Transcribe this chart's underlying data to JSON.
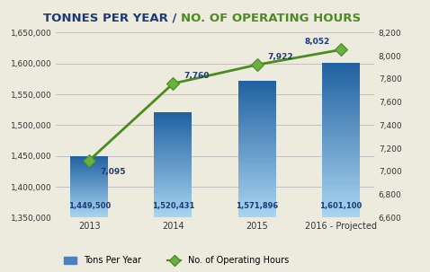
{
  "title_part1": "TONNES PER YEAR / ",
  "title_part2": "NO. OF OPERATING HOURS",
  "categories": [
    "2013",
    "2014",
    "2015",
    "2016 - Projected"
  ],
  "bar_values": [
    1449500,
    1520431,
    1571896,
    1601100
  ],
  "line_values": [
    7095,
    7760,
    7922,
    8052
  ],
  "bar_labels": [
    "1,449,500",
    "1,520,431",
    "1,571,896",
    "1,601,100"
  ],
  "line_labels": [
    "7,095",
    "7,760",
    "7,922",
    "8,052"
  ],
  "ylim_left": [
    1350000,
    1650000
  ],
  "ylim_right": [
    6600,
    8200
  ],
  "yticks_left": [
    1350000,
    1400000,
    1450000,
    1500000,
    1550000,
    1600000,
    1650000
  ],
  "yticks_right": [
    6600,
    6800,
    7000,
    7200,
    7400,
    7600,
    7800,
    8000,
    8200
  ],
  "ytick_labels_left": [
    "1,350,000",
    "1,400,000",
    "1,450,000",
    "1,500,000",
    "1,550,000",
    "1,600,000",
    "1,650,000"
  ],
  "ytick_labels_right": [
    "6,600",
    "6,800",
    "7,000",
    "7,200",
    "7,400",
    "7,600",
    "7,800",
    "8,000",
    "8,200"
  ],
  "bar_color_top": "#2060a0",
  "bar_color_bottom": "#a8d4f0",
  "line_color": "#4a8c20",
  "marker_color": "#6ab040",
  "bg_color": "#edeade",
  "grid_color": "#bbbbbb",
  "title_color1": "#1a3a7a",
  "title_color2": "#4a8c20",
  "legend_bar_label": "Tons Per Year",
  "legend_line_label": "No. of Operating Hours",
  "bar_label_color": "#1a3a7a",
  "line_label_color": "#1a3a7a"
}
